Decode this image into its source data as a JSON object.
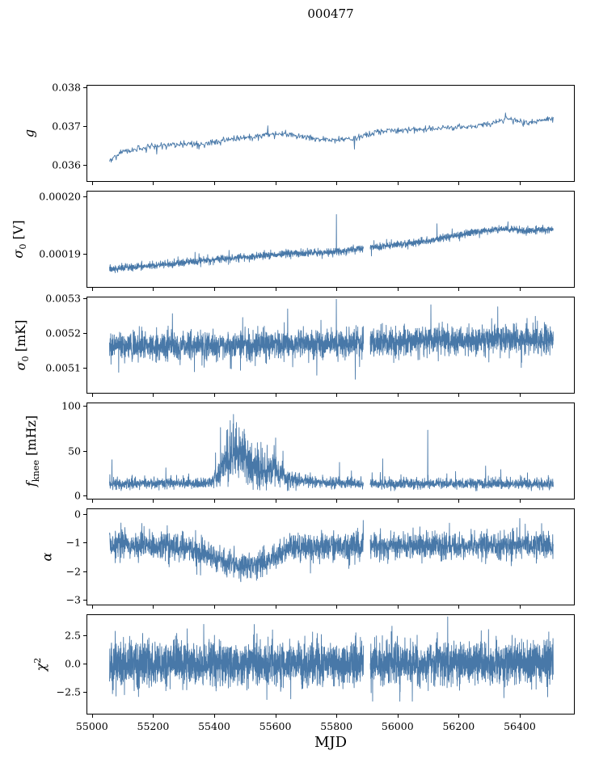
{
  "chart_data": {
    "type": "line",
    "title": "000477",
    "xlabel": "MJD",
    "line_color": "#4878a8",
    "legend": "none",
    "grid": false,
    "xlim": [
      54982,
      56580
    ],
    "x_data_range": [
      55055,
      56512
    ],
    "xticks": [
      55000,
      55200,
      55400,
      55600,
      55800,
      56000,
      56200,
      56400
    ],
    "xtick_labels": [
      "55000",
      "55200",
      "55400",
      "55600",
      "55800",
      "56000",
      "56200",
      "56400"
    ],
    "data_gaps": [
      [
        55889,
        55911
      ]
    ],
    "subplots": [
      {
        "name": "g",
        "ylabel_text": "g",
        "ylabel_tokens": [
          {
            "t": "g",
            "i": true
          }
        ],
        "ylim": [
          0.03559,
          0.03804
        ],
        "yticks": [
          0.036,
          0.037,
          0.038
        ],
        "ytick_labels": [
          "0.036",
          "0.037",
          "0.038"
        ],
        "n_points": 800,
        "gap": false,
        "baseline": [
          [
            55055,
            0.03612
          ],
          [
            55090,
            0.03632
          ],
          [
            55130,
            0.0364
          ],
          [
            55200,
            0.03648
          ],
          [
            55300,
            0.03655
          ],
          [
            55360,
            0.03652
          ],
          [
            55420,
            0.03662
          ],
          [
            55500,
            0.0367
          ],
          [
            55560,
            0.03676
          ],
          [
            55600,
            0.0368
          ],
          [
            55650,
            0.03678
          ],
          [
            55720,
            0.03668
          ],
          [
            55790,
            0.03665
          ],
          [
            55860,
            0.03668
          ],
          [
            55950,
            0.03688
          ],
          [
            56050,
            0.0369
          ],
          [
            56150,
            0.03695
          ],
          [
            56250,
            0.037
          ],
          [
            56320,
            0.0371
          ],
          [
            56360,
            0.03718
          ],
          [
            56420,
            0.03708
          ],
          [
            56470,
            0.03715
          ],
          [
            56512,
            0.03722
          ]
        ],
        "noise": 4e-05,
        "spike_prob": 0.03,
        "spike_amp": 7e-05,
        "spike_sign": 0,
        "spikes": [
          [
            55210,
            0.03628
          ],
          [
            55575,
            0.03701
          ],
          [
            55860,
            0.03641
          ],
          [
            56355,
            0.03734
          ]
        ]
      },
      {
        "name": "sigma0_V",
        "ylabel_text": "sigma0 [V]",
        "ylabel_tokens": [
          {
            "t": "σ",
            "i": true
          },
          {
            "t": "0",
            "sub": true
          },
          {
            "t": " [V]"
          }
        ],
        "ylim": [
          0.0001842,
          0.0002008
        ],
        "yticks": [
          0.00019,
          0.0002
        ],
        "ytick_labels": [
          "0.00019",
          "0.00020"
        ],
        "n_points": 2600,
        "baseline": [
          [
            55055,
            0.0001873
          ],
          [
            55150,
            0.0001878
          ],
          [
            55250,
            0.0001882
          ],
          [
            55350,
            0.0001887
          ],
          [
            55450,
            0.0001892
          ],
          [
            55550,
            0.0001896
          ],
          [
            55650,
            0.00019
          ],
          [
            55750,
            0.0001902
          ],
          [
            55820,
            0.0001904
          ],
          [
            55900,
            0.000191
          ],
          [
            56000,
            0.0001916
          ],
          [
            56100,
            0.0001922
          ],
          [
            56200,
            0.0001932
          ],
          [
            56280,
            0.000194
          ],
          [
            56350,
            0.0001943
          ],
          [
            56420,
            0.000194
          ],
          [
            56512,
            0.0001942
          ]
        ],
        "noise": 3e-07,
        "spike_prob": 0.02,
        "spike_amp": 8e-07,
        "spike_sign": 0,
        "spikes": [
          [
            55800,
            0.0001968
          ],
          [
            55915,
            0.0001896
          ],
          [
            56130,
            0.0001952
          ]
        ]
      },
      {
        "name": "sigma0_mK",
        "ylabel_text": "sigma0 [mK]",
        "ylabel_tokens": [
          {
            "t": "σ",
            "i": true
          },
          {
            "t": "0",
            "sub": true
          },
          {
            "t": " [mK]"
          }
        ],
        "ylim": [
          0.005029,
          0.005303
        ],
        "yticks": [
          0.0051,
          0.0052,
          0.0053
        ],
        "ytick_labels": [
          "0.0051",
          "0.0052",
          "0.0053"
        ],
        "n_points": 3000,
        "baseline": [
          [
            55055,
            0.005163
          ],
          [
            55150,
            0.00516
          ],
          [
            55250,
            0.005166
          ],
          [
            55350,
            0.005163
          ],
          [
            55450,
            0.005167
          ],
          [
            55550,
            0.005164
          ],
          [
            55650,
            0.00517
          ],
          [
            55750,
            0.005171
          ],
          [
            55850,
            0.005173
          ],
          [
            55950,
            0.005175
          ],
          [
            56050,
            0.005177
          ],
          [
            56150,
            0.005181
          ],
          [
            56250,
            0.005179
          ],
          [
            56350,
            0.005182
          ],
          [
            56450,
            0.005179
          ],
          [
            56512,
            0.00518
          ]
        ],
        "noise": 1.9e-05,
        "spike_prob": 0.05,
        "spike_amp": 4e-05,
        "spike_sign": 0,
        "spikes": [
          [
            55085,
            0.005088
          ],
          [
            55455,
            0.005098
          ],
          [
            55640,
            0.00527
          ],
          [
            55800,
            0.005298
          ],
          [
            55862,
            0.005068
          ],
          [
            56110,
            0.005282
          ],
          [
            56330,
            0.005276
          ]
        ]
      },
      {
        "name": "f_knee",
        "ylabel_text": "f_knee [mHz]",
        "ylabel_tokens": [
          {
            "t": "f",
            "i": true
          },
          {
            "t": "knee",
            "sub": true
          },
          {
            "t": " [mHz]"
          }
        ],
        "ylim": [
          -3.5,
          103
        ],
        "yticks": [
          0,
          50,
          100
        ],
        "ytick_labels": [
          "0",
          "50",
          "100"
        ],
        "n_points": 2600,
        "baseline": [
          [
            55055,
            13
          ],
          [
            55150,
            13
          ],
          [
            55250,
            14
          ],
          [
            55330,
            13
          ],
          [
            55380,
            14
          ],
          [
            55410,
            20
          ],
          [
            55435,
            42
          ],
          [
            55465,
            48
          ],
          [
            55500,
            42
          ],
          [
            55530,
            30
          ],
          [
            55560,
            24
          ],
          [
            55580,
            26
          ],
          [
            55600,
            30
          ],
          [
            55620,
            22
          ],
          [
            55650,
            17
          ],
          [
            55700,
            15
          ],
          [
            55800,
            14
          ],
          [
            55900,
            13
          ],
          [
            56000,
            13
          ],
          [
            56100,
            13
          ],
          [
            56200,
            13
          ],
          [
            56300,
            13
          ],
          [
            56400,
            13
          ],
          [
            56512,
            13
          ]
        ],
        "noise": 2.6,
        "noise_env": [
          [
            55055,
            1
          ],
          [
            55390,
            1
          ],
          [
            55420,
            4
          ],
          [
            55450,
            5.5
          ],
          [
            55520,
            5
          ],
          [
            55560,
            3.5
          ],
          [
            55600,
            3.5
          ],
          [
            55640,
            2
          ],
          [
            55680,
            1.2
          ],
          [
            55720,
            1
          ],
          [
            56512,
            1
          ]
        ],
        "spike_prob": 0.05,
        "spike_amp": 7,
        "spike_sign": 1,
        "ymin_clip": 4,
        "clip_jitter": 3,
        "spikes": [
          [
            55063,
            40
          ],
          [
            55240,
            31
          ],
          [
            55810,
            37
          ],
          [
            55952,
            41
          ],
          [
            56100,
            73
          ],
          [
            56290,
            33
          ],
          [
            56340,
            29
          ]
        ]
      },
      {
        "name": "alpha",
        "ylabel_text": "alpha",
        "ylabel_tokens": [
          {
            "t": "α",
            "i": true
          }
        ],
        "ylim": [
          -3.17,
          0.17
        ],
        "yticks": [
          -3,
          -2,
          -1,
          0
        ],
        "ytick_labels": [
          "−3",
          "−2",
          "−1",
          "0"
        ],
        "n_points": 2600,
        "baseline": [
          [
            55055,
            -1.05
          ],
          [
            55150,
            -1.1
          ],
          [
            55250,
            -1.12
          ],
          [
            55320,
            -1.2
          ],
          [
            55360,
            -1.35
          ],
          [
            55420,
            -1.6
          ],
          [
            55470,
            -1.75
          ],
          [
            55520,
            -1.8
          ],
          [
            55570,
            -1.7
          ],
          [
            55610,
            -1.4
          ],
          [
            55650,
            -1.2
          ],
          [
            55700,
            -1.1
          ],
          [
            55800,
            -1.12
          ],
          [
            55900,
            -1.1
          ],
          [
            56000,
            -1.12
          ],
          [
            56100,
            -1.1
          ],
          [
            56200,
            -1.12
          ],
          [
            56300,
            -1.1
          ],
          [
            56400,
            -1.12
          ],
          [
            56512,
            -1.1
          ]
        ],
        "noise": 0.22,
        "spike_prob": 0.05,
        "spike_amp": 0.45,
        "spike_sign": 0,
        "spikes": [
          [
            55888,
            -0.22
          ],
          [
            56420,
            -0.35
          ]
        ]
      },
      {
        "name": "chi2",
        "ylabel_text": "chi^2",
        "ylabel_tokens": [
          {
            "t": "χ",
            "i": true
          },
          {
            "t": "2",
            "sup": true
          }
        ],
        "ylim": [
          -4.4,
          4.25
        ],
        "yticks": [
          -2.5,
          0,
          2.5
        ],
        "ytick_labels": [
          "−2.5",
          "0.0",
          "2.5"
        ],
        "n_points": 3600,
        "baseline": [
          [
            55055,
            0
          ],
          [
            56512,
            0
          ]
        ],
        "noise": 0.9,
        "spike_prob": 0.07,
        "spike_amp": 1.1,
        "spike_sign": 0,
        "spikes": [
          [
            55150,
            -2.9
          ],
          [
            55590,
            2.95
          ],
          [
            55650,
            -3.1
          ],
          [
            55980,
            2.8
          ],
          [
            56350,
            -3.0
          ]
        ]
      }
    ]
  }
}
